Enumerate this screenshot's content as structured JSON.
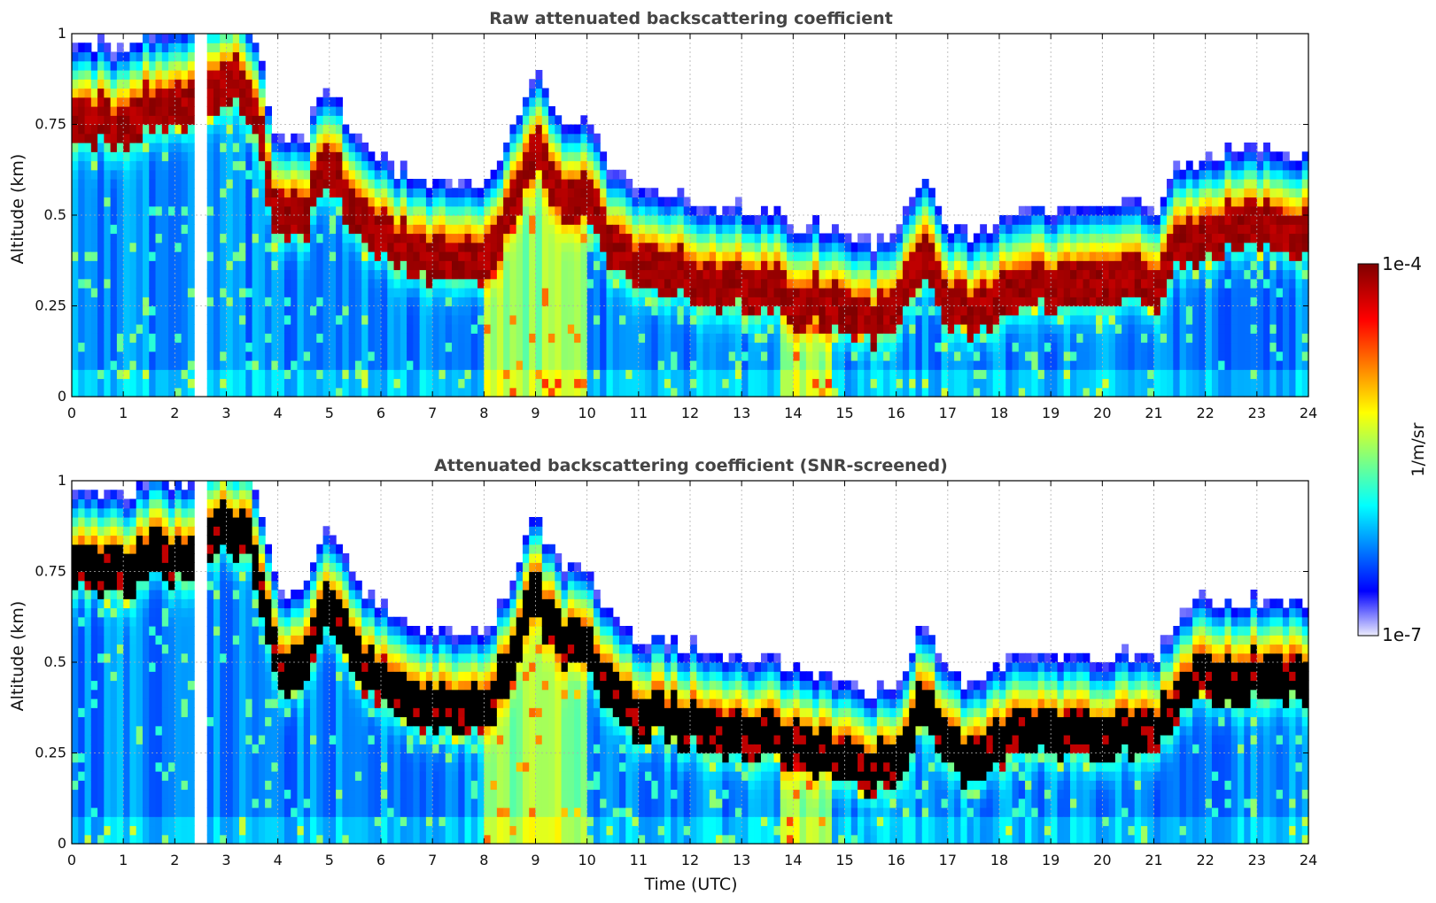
{
  "chart_data": [
    {
      "type": "heatmap",
      "title": "Raw attenuated backscattering coefficient",
      "xlabel": "",
      "ylabel": "Altitude (km)",
      "xlim": [
        0,
        24
      ],
      "ylim": [
        0,
        1
      ],
      "x_ticks": [
        "0",
        "1",
        "2",
        "3",
        "4",
        "5",
        "6",
        "7",
        "8",
        "9",
        "10",
        "11",
        "12",
        "13",
        "14",
        "15",
        "16",
        "17",
        "18",
        "19",
        "20",
        "21",
        "22",
        "23",
        "24"
      ],
      "y_ticks": [
        "0",
        "0.25",
        "0.5",
        "0.75",
        "1"
      ],
      "grid": true,
      "layer_altitude_km": [
        [
          0.0,
          0.78
        ],
        [
          0.5,
          0.76
        ],
        [
          1.0,
          0.74
        ],
        [
          1.5,
          0.8
        ],
        [
          2.0,
          0.78
        ],
        [
          2.4,
          0.8
        ],
        [
          3.0,
          0.88
        ],
        [
          3.5,
          0.82
        ],
        [
          4.0,
          0.48
        ],
        [
          4.5,
          0.5
        ],
        [
          5.0,
          0.65
        ],
        [
          5.5,
          0.52
        ],
        [
          6.0,
          0.45
        ],
        [
          6.5,
          0.4
        ],
        [
          7.0,
          0.38
        ],
        [
          7.5,
          0.37
        ],
        [
          8.0,
          0.37
        ],
        [
          8.5,
          0.5
        ],
        [
          9.0,
          0.7
        ],
        [
          9.5,
          0.55
        ],
        [
          10.0,
          0.56
        ],
        [
          10.5,
          0.4
        ],
        [
          11.0,
          0.35
        ],
        [
          11.5,
          0.35
        ],
        [
          12.0,
          0.33
        ],
        [
          12.5,
          0.32
        ],
        [
          13.0,
          0.3
        ],
        [
          13.5,
          0.3
        ],
        [
          14.0,
          0.27
        ],
        [
          14.5,
          0.26
        ],
        [
          15.0,
          0.24
        ],
        [
          15.5,
          0.2
        ],
        [
          16.0,
          0.22
        ],
        [
          16.5,
          0.4
        ],
        [
          17.0,
          0.27
        ],
        [
          17.5,
          0.22
        ],
        [
          18.0,
          0.28
        ],
        [
          18.5,
          0.3
        ],
        [
          19.0,
          0.3
        ],
        [
          19.5,
          0.3
        ],
        [
          20.0,
          0.3
        ],
        [
          20.5,
          0.32
        ],
        [
          21.0,
          0.3
        ],
        [
          21.5,
          0.42
        ],
        [
          22.0,
          0.46
        ],
        [
          22.5,
          0.46
        ],
        [
          23.0,
          0.46
        ],
        [
          23.5,
          0.46
        ],
        [
          24.0,
          0.46
        ]
      ],
      "data_gap_utc": [
        2.5,
        2.55
      ]
    },
    {
      "type": "heatmap",
      "title": "Attenuated backscattering coefficient (SNR-screened)",
      "xlabel": "Time (UTC)",
      "ylabel": "Altitude (km)",
      "xlim": [
        0,
        24
      ],
      "ylim": [
        0,
        1
      ],
      "x_ticks": [
        "0",
        "1",
        "2",
        "3",
        "4",
        "5",
        "6",
        "7",
        "8",
        "9",
        "10",
        "11",
        "12",
        "13",
        "14",
        "15",
        "16",
        "17",
        "18",
        "19",
        "20",
        "21",
        "22",
        "23",
        "24"
      ],
      "y_ticks": [
        "0",
        "0.25",
        "0.5",
        "0.75",
        "1"
      ],
      "grid": true,
      "saturated_color": "#000000",
      "layer_altitude_km": [
        [
          0.0,
          0.78
        ],
        [
          0.5,
          0.76
        ],
        [
          1.0,
          0.74
        ],
        [
          1.5,
          0.8
        ],
        [
          2.0,
          0.78
        ],
        [
          2.4,
          0.8
        ],
        [
          3.0,
          0.88
        ],
        [
          3.5,
          0.82
        ],
        [
          4.0,
          0.48
        ],
        [
          4.5,
          0.5
        ],
        [
          5.0,
          0.65
        ],
        [
          5.5,
          0.52
        ],
        [
          6.0,
          0.45
        ],
        [
          6.5,
          0.4
        ],
        [
          7.0,
          0.38
        ],
        [
          7.5,
          0.37
        ],
        [
          8.0,
          0.37
        ],
        [
          8.5,
          0.5
        ],
        [
          9.0,
          0.7
        ],
        [
          9.5,
          0.55
        ],
        [
          10.0,
          0.56
        ],
        [
          10.5,
          0.4
        ],
        [
          11.0,
          0.35
        ],
        [
          11.5,
          0.35
        ],
        [
          12.0,
          0.33
        ],
        [
          12.5,
          0.32
        ],
        [
          13.0,
          0.3
        ],
        [
          13.5,
          0.3
        ],
        [
          14.0,
          0.27
        ],
        [
          14.5,
          0.26
        ],
        [
          15.0,
          0.24
        ],
        [
          15.5,
          0.2
        ],
        [
          16.0,
          0.22
        ],
        [
          16.5,
          0.4
        ],
        [
          17.0,
          0.27
        ],
        [
          17.5,
          0.22
        ],
        [
          18.0,
          0.28
        ],
        [
          18.5,
          0.3
        ],
        [
          19.0,
          0.3
        ],
        [
          19.5,
          0.3
        ],
        [
          20.0,
          0.3
        ],
        [
          20.5,
          0.32
        ],
        [
          21.0,
          0.3
        ],
        [
          21.5,
          0.42
        ],
        [
          22.0,
          0.46
        ],
        [
          22.5,
          0.46
        ],
        [
          23.0,
          0.46
        ],
        [
          23.5,
          0.46
        ],
        [
          24.0,
          0.46
        ]
      ],
      "data_gap_utc": [
        2.5,
        2.55
      ]
    }
  ],
  "colorbar": {
    "label": "1/m/sr",
    "max_label": "1e-4",
    "min_label": "1e-7",
    "colors": [
      "#ececfd",
      "#0000ff",
      "#00ffff",
      "#ffff00",
      "#ff0000",
      "#800000"
    ]
  }
}
